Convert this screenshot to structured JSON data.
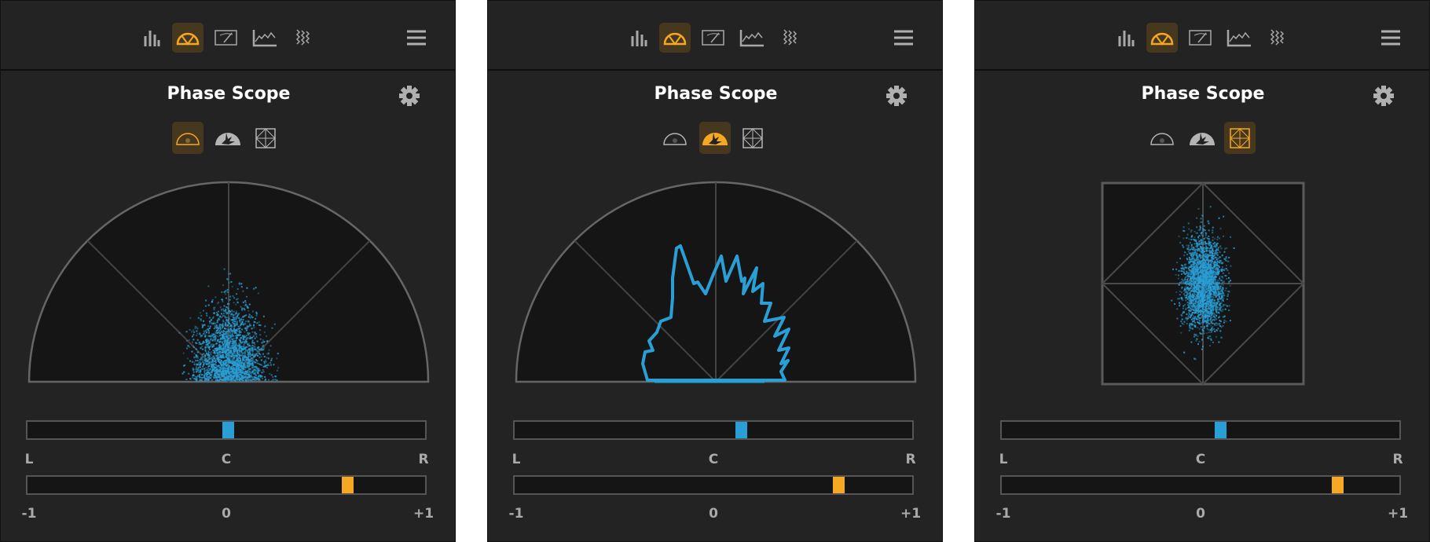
{
  "colors": {
    "accent": "#f7a823",
    "signal": "#2a9fd6",
    "panel_bg": "#232323",
    "scope_bg": "#151515",
    "grid": "#555555"
  },
  "toolbar": {
    "icons": [
      "spectrum-bars-icon",
      "phase-scope-icon",
      "vu-meter-icon",
      "loudness-history-icon",
      "spectrogram-icon"
    ],
    "active": "phase-scope-icon",
    "menu_icon": "hamburger-menu-icon"
  },
  "panels": [
    {
      "title": "Phase Scope",
      "settings_icon": "gear-icon",
      "modes": [
        "polar-sample-icon",
        "polar-level-icon",
        "lissajous-icon"
      ],
      "active_mode": 0,
      "balance": {
        "labels": [
          "L",
          "C",
          "R"
        ],
        "value": 0.01
      },
      "correlation": {
        "labels": [
          "-1",
          "0",
          "+1"
        ],
        "value": 0.61
      }
    },
    {
      "title": "Phase Scope",
      "settings_icon": "gear-icon",
      "modes": [
        "polar-sample-icon",
        "polar-level-icon",
        "lissajous-icon"
      ],
      "active_mode": 1,
      "balance": {
        "labels": [
          "L",
          "C",
          "R"
        ],
        "value": 0.14
      },
      "correlation": {
        "labels": [
          "-1",
          "0",
          "+1"
        ],
        "value": 0.63
      }
    },
    {
      "title": "Phase Scope",
      "settings_icon": "gear-icon",
      "modes": [
        "polar-sample-icon",
        "polar-level-icon",
        "lissajous-icon"
      ],
      "active_mode": 2,
      "balance": {
        "labels": [
          "L",
          "C",
          "R"
        ],
        "value": 0.1
      },
      "correlation": {
        "labels": [
          "-1",
          "0",
          "+1"
        ],
        "value": 0.69
      }
    }
  ]
}
